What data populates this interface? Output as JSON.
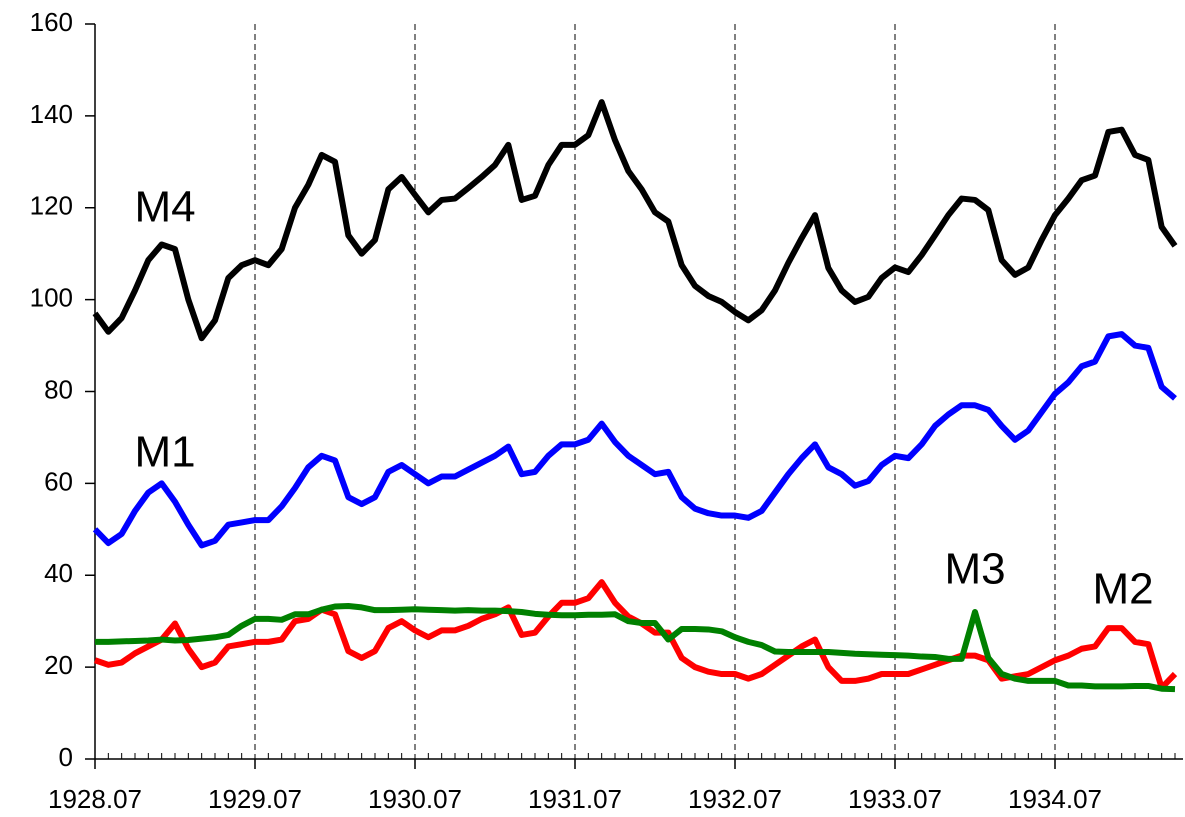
{
  "chart_data": {
    "type": "line",
    "categories": [
      "1928.07",
      null,
      null,
      null,
      null,
      null,
      null,
      null,
      null,
      null,
      null,
      null,
      "1929.07",
      null,
      null,
      null,
      null,
      null,
      null,
      null,
      null,
      null,
      null,
      null,
      "1930.07",
      null,
      null,
      null,
      null,
      null,
      null,
      null,
      null,
      null,
      null,
      null,
      "1931.07",
      null,
      null,
      null,
      null,
      null,
      null,
      null,
      null,
      null,
      null,
      null,
      "1932.07",
      null,
      null,
      null,
      null,
      null,
      null,
      null,
      null,
      null,
      null,
      null,
      "1933.07",
      null,
      null,
      null,
      null,
      null,
      null,
      null,
      null,
      null,
      null,
      null,
      "1934.07",
      null,
      null,
      null,
      null,
      null,
      null,
      null,
      null,
      null
    ],
    "series": [
      {
        "name": "M4",
        "color": "#000000",
        "values": [
          97,
          93,
          96,
          102,
          108.6,
          112,
          111,
          100,
          91.6,
          95.5,
          104.7,
          107.5,
          108.6,
          107.5,
          111,
          120,
          125,
          131.5,
          130,
          114,
          110,
          113,
          124,
          126.7,
          122.8,
          119,
          121.7,
          122,
          124.3,
          126.7,
          129.3,
          133.7,
          121.7,
          122.6,
          129.3,
          133.7,
          133.7,
          135.8,
          143,
          134.7,
          128,
          124,
          119,
          117,
          107.5,
          103,
          100.8,
          99.5,
          97.3,
          95.5,
          97.7,
          102,
          108,
          113.4,
          118.4,
          106.9,
          102,
          99.5,
          100.6,
          104.7,
          107,
          106,
          109.7,
          114,
          118.4,
          122,
          121.7,
          119.5,
          108.6,
          105.4,
          107,
          113,
          118.4,
          122,
          126,
          127,
          136.5,
          137,
          131.5,
          130.4,
          115.8,
          111.7
        ]
      },
      {
        "name": "M1",
        "color": "#0000ff",
        "values": [
          50,
          47,
          49,
          54,
          58,
          60,
          56,
          51,
          46.5,
          47.5,
          51,
          51.5,
          52,
          52,
          55,
          59,
          63.5,
          66,
          65,
          57,
          55.5,
          57,
          62.5,
          64,
          62,
          60,
          61.5,
          61.5,
          63,
          64.5,
          66,
          68,
          62,
          62.5,
          66,
          68.5,
          68.5,
          69.5,
          73,
          69,
          66,
          64,
          62,
          62.5,
          57,
          54.5,
          53.5,
          53,
          53,
          52.5,
          54,
          58,
          62,
          65.5,
          68.5,
          63.5,
          62,
          59.5,
          60.5,
          64,
          66,
          65.5,
          68.5,
          72.5,
          75,
          77,
          77,
          76,
          72.5,
          69.5,
          71.5,
          75.5,
          79.5,
          82,
          85.5,
          86.5,
          92,
          92.5,
          90,
          89.5,
          81,
          78.5
        ]
      },
      {
        "name": "M2",
        "color": "#ff0000",
        "values": [
          21.5,
          20.5,
          21,
          23,
          24.5,
          26,
          29.5,
          24,
          20,
          21,
          24.5,
          25,
          25.5,
          25.5,
          26,
          30,
          30.5,
          32.5,
          31.5,
          23.5,
          22,
          23.5,
          28.5,
          30,
          28,
          26.5,
          28,
          28,
          29,
          30.5,
          31.5,
          33,
          27,
          27.5,
          31,
          34,
          34,
          35,
          38.5,
          34,
          31,
          29.5,
          27.5,
          27.5,
          22,
          20,
          19,
          18.5,
          18.5,
          17.5,
          18.5,
          20.5,
          22.5,
          24.5,
          26,
          20,
          17,
          17,
          17.5,
          18.5,
          18.5,
          18.5,
          19.5,
          20.5,
          21.5,
          22.5,
          22.5,
          21.5,
          17.5,
          18,
          18.5,
          20,
          21.5,
          22.5,
          24,
          24.5,
          28.5,
          28.5,
          25.5,
          25,
          15.5,
          18.5
        ]
      },
      {
        "name": "M3",
        "color": "#008000",
        "values": [
          25.5,
          25.5,
          25.6,
          25.7,
          25.8,
          26,
          25.8,
          25.9,
          26.2,
          26.5,
          27,
          29,
          30.5,
          30.5,
          30.3,
          31.5,
          31.5,
          32.5,
          33.2,
          33.3,
          33,
          32.4,
          32.4,
          32.5,
          32.6,
          32.5,
          32.4,
          32.3,
          32.4,
          32.3,
          32.3,
          32.2,
          32,
          31.6,
          31.4,
          31.3,
          31.3,
          31.4,
          31.4,
          31.5,
          30,
          29.6,
          29.6,
          26,
          28.3,
          28.3,
          28.2,
          27.8,
          26.5,
          25.5,
          24.8,
          23.4,
          23.3,
          23.3,
          23.3,
          23.3,
          23.1,
          22.9,
          22.8,
          22.7,
          22.6,
          22.5,
          22.3,
          22.2,
          21.8,
          21.8,
          32,
          22,
          18.5,
          17.5,
          17,
          17,
          17,
          16,
          16,
          15.8,
          15.8,
          15.8,
          15.9,
          15.9,
          15.3,
          15.2
        ]
      }
    ],
    "ylim": [
      0,
      160
    ],
    "yticks": [
      0,
      20,
      40,
      60,
      80,
      100,
      120,
      140,
      160
    ],
    "grid": true
  }
}
